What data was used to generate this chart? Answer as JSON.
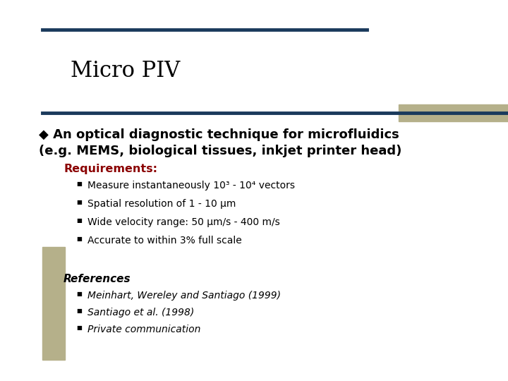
{
  "title": "Micro PIV",
  "bg_color": "#ffffff",
  "accent_color": "#b5b08a",
  "bar_color": "#1a3a5c",
  "req_color": "#8b0000",
  "text_color": "#000000",
  "main_bullet_line1": "◆ An optical diagnostic technique for microfluidics",
  "main_bullet_line2": "(e.g. MEMS, biological tissues, inkjet printer head)",
  "req_label": "Requirements:",
  "req_bullets": [
    "Measure instantaneously 10³ - 10⁴ vectors",
    "Spatial resolution of 1 - 10 μm",
    "Wide velocity range: 50 μm/s - 400 m/s",
    "Accurate to within 3% full scale"
  ],
  "ref_label": "References",
  "ref_bullets": [
    "Meinhart, Wereley and Santiago (1999)",
    "Santiago et al. (1998)",
    "Private communication"
  ]
}
